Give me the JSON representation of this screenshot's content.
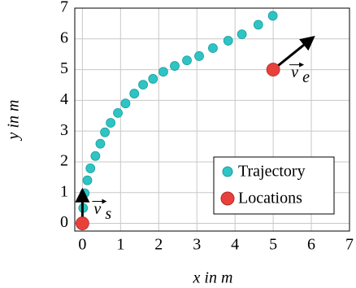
{
  "chart_data": {
    "type": "scatter",
    "xlabel": "x in m",
    "ylabel": "y in m",
    "xlim": [
      -0.2,
      7
    ],
    "ylim": [
      -0.25,
      7
    ],
    "xticks": [
      0,
      1,
      2,
      3,
      4,
      5,
      6,
      7
    ],
    "yticks": [
      0,
      1,
      2,
      3,
      4,
      5,
      6,
      7
    ],
    "grid": true,
    "legend": "lower right",
    "series": [
      {
        "name": "Trajectory",
        "color": "#2ec4c4",
        "x": [
          0,
          0.02,
          0.06,
          0.13,
          0.21,
          0.34,
          0.47,
          0.59,
          0.74,
          0.93,
          1.13,
          1.36,
          1.59,
          1.85,
          2.12,
          2.42,
          2.74,
          3.06,
          3.42,
          3.82,
          4.18,
          4.61,
          4.99
        ],
        "y": [
          0,
          0.5,
          0.98,
          1.4,
          1.79,
          2.19,
          2.59,
          2.96,
          3.27,
          3.59,
          3.9,
          4.22,
          4.51,
          4.7,
          4.93,
          5.12,
          5.3,
          5.44,
          5.7,
          5.94,
          6.15,
          6.46,
          6.75
        ]
      },
      {
        "name": "Locations",
        "color": "#e8413c",
        "x": [
          0,
          5
        ],
        "y": [
          0,
          5
        ]
      }
    ],
    "vectors": [
      {
        "label": "v",
        "subscript": "s",
        "start": [
          0,
          0
        ],
        "end": [
          0,
          1
        ]
      },
      {
        "label": "v",
        "subscript": "e",
        "start": [
          5,
          5
        ],
        "end": [
          6,
          6
        ]
      }
    ]
  }
}
